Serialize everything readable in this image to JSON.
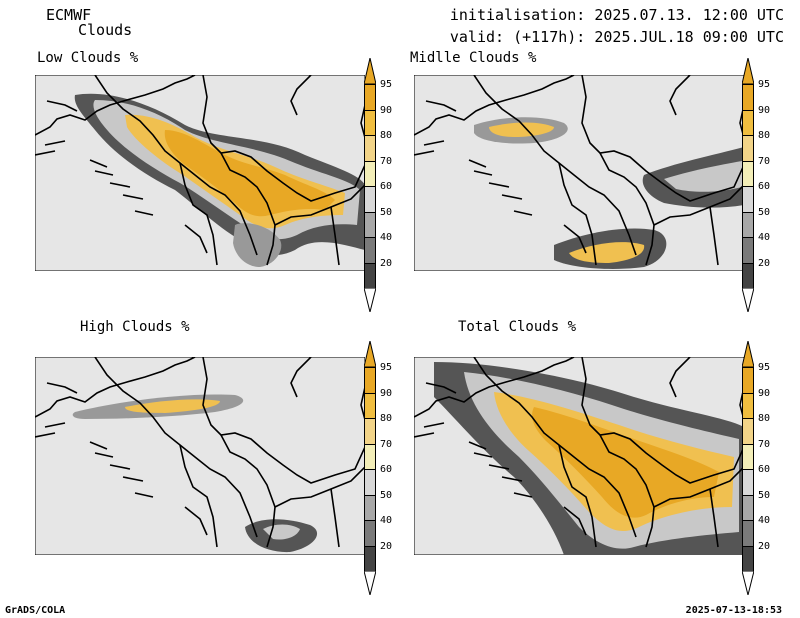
{
  "header": {
    "model": "ECMWF",
    "product": "Clouds",
    "initialisation": "initialisation: 2025.07.13. 12:00 UTC",
    "valid": "valid: (+117h): 2025.JUL.18 09:00 UTC"
  },
  "panels": [
    {
      "title": "Low Clouds %"
    },
    {
      "title": "Midlle Clouds %"
    },
    {
      "title": "High Clouds %"
    },
    {
      "title": "Total Clouds %"
    }
  ],
  "colorbar": {
    "labels": [
      "95",
      "90",
      "80",
      "70",
      "60",
      "50",
      "40",
      "20"
    ],
    "colors": [
      "#E8A825",
      "#F0BE40",
      "#F2D488",
      "#F3EEB8",
      "#D8D8D8",
      "#A8A8A8",
      "#7A7A7A",
      "#444444"
    ]
  },
  "footer": {
    "left": "GrADS/COLA",
    "right": "2025-07-13-18:53"
  },
  "map_colors": {
    "background": "#E6E6E6",
    "dark": "#555555",
    "mid": "#999999",
    "light": "#C8C8C8",
    "yellow": "#F0C050",
    "orange": "#E8A825"
  }
}
